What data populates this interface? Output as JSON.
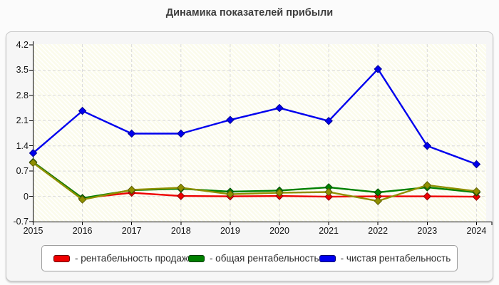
{
  "title": "Динамика показателей прибыли",
  "legend": {
    "items": [
      {
        "label": "- рентабельность продаж",
        "color": "#ee0000"
      },
      {
        "label": "- общая рентабельность",
        "color": "#008000"
      },
      {
        "label": "- чистая рентабельность",
        "color": "#0000ee"
      }
    ]
  },
  "chart_data": {
    "type": "line",
    "title": "Динамика показателей прибыли",
    "x": [
      2015,
      2016,
      2017,
      2018,
      2019,
      2020,
      2021,
      2022,
      2023,
      2024
    ],
    "series": [
      {
        "name": "рентабельность продаж",
        "color": "#ee0000",
        "border": "#8b0000",
        "values": [
          0.95,
          -0.05,
          0.1,
          0.01,
          0.0,
          0.01,
          -0.01,
          0.0,
          0.0,
          -0.01
        ]
      },
      {
        "name": "общая рентабельность",
        "color": "#008000",
        "border": "#004d00",
        "values": [
          0.95,
          -0.05,
          0.17,
          0.21,
          0.13,
          0.16,
          0.25,
          0.11,
          0.25,
          0.11
        ]
      },
      {
        "name": "",
        "color": "#8f8f00",
        "border": "#5f5f00",
        "values": [
          0.93,
          -0.09,
          0.18,
          0.24,
          0.06,
          0.1,
          0.12,
          -0.13,
          0.31,
          0.14
        ]
      },
      {
        "name": "чистая рентабельность",
        "color": "#0000ee",
        "border": "#000090",
        "values": [
          1.2,
          2.37,
          1.74,
          1.74,
          2.12,
          2.45,
          2.09,
          3.53,
          1.4,
          0.89
        ]
      }
    ],
    "yticks": [
      4.2,
      3.5,
      2.8,
      2.1,
      1.4,
      0.7,
      0,
      -0.7
    ],
    "ylim": [
      -0.7,
      4.2
    ],
    "grid": "dashed",
    "grid_color": "#d9d9d9",
    "legend_position": "bottom"
  }
}
